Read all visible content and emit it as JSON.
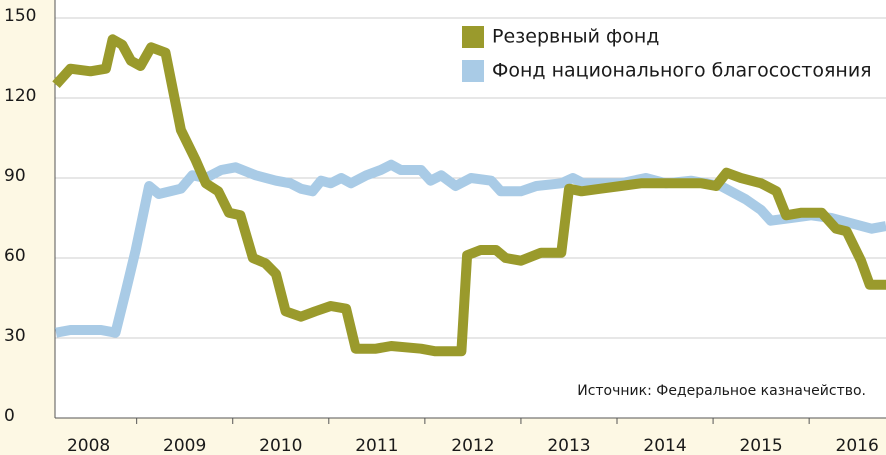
{
  "chart_data": {
    "type": "line",
    "annotation": "Источник: Федеральное казначейство.",
    "xlim": [
      2008.15,
      2016.8
    ],
    "xticks": [
      2008,
      2009,
      2010,
      2011,
      2012,
      2013,
      2014,
      2015,
      2016
    ],
    "ylim": [
      0,
      150
    ],
    "yticks": [
      0,
      30,
      60,
      90,
      120,
      150
    ],
    "grid": true,
    "legend": "upper right",
    "series": [
      {
        "name": "Резервный фонд",
        "color": "#9a9a2c",
        "x": [
          2008.16,
          2008.31,
          2008.52,
          2008.68,
          2008.75,
          2008.85,
          2008.94,
          2009.04,
          2009.15,
          2009.3,
          2009.46,
          2009.61,
          2009.72,
          2009.85,
          2009.96,
          2010.08,
          2010.21,
          2010.34,
          2010.45,
          2010.55,
          2010.71,
          2010.86,
          2011.02,
          2011.18,
          2011.28,
          2011.49,
          2011.65,
          2011.96,
          2012.11,
          2012.38,
          2012.44,
          2012.58,
          2012.74,
          2012.84,
          2013.0,
          2013.21,
          2013.42,
          2013.5,
          2013.63,
          2013.83,
          2014.04,
          2014.25,
          2014.46,
          2014.88,
          2015.03,
          2015.14,
          2015.29,
          2015.5,
          2015.66,
          2015.76,
          2015.92,
          2016.13,
          2016.28,
          2016.39,
          2016.54,
          2016.63,
          2016.8
        ],
        "values": [
          125,
          131,
          130,
          131,
          142,
          140,
          134,
          132,
          139,
          137,
          108,
          97,
          88,
          85,
          77,
          76,
          60,
          58,
          54,
          40,
          38,
          40,
          42,
          41,
          26,
          26,
          27,
          26,
          25,
          25,
          61,
          63,
          63,
          60,
          59,
          62,
          62,
          86,
          85,
          86,
          87,
          88,
          88,
          88,
          87,
          92,
          90,
          88,
          85,
          76,
          77,
          77,
          71,
          70,
          59,
          50,
          50
        ]
      },
      {
        "name": "Фонд национального благосостояния",
        "color": "#a9cbe6",
        "x": [
          2008.16,
          2008.31,
          2008.63,
          2008.78,
          2008.89,
          2008.99,
          2009.13,
          2009.23,
          2009.35,
          2009.46,
          2009.58,
          2009.72,
          2009.88,
          2010.03,
          2010.24,
          2010.45,
          2010.6,
          2010.71,
          2010.83,
          2010.92,
          2011.02,
          2011.13,
          2011.23,
          2011.39,
          2011.54,
          2011.65,
          2011.75,
          2011.96,
          2012.06,
          2012.17,
          2012.32,
          2012.48,
          2012.69,
          2012.79,
          2013.0,
          2013.16,
          2013.42,
          2013.54,
          2013.65,
          2014.04,
          2014.3,
          2014.51,
          2014.77,
          2015.08,
          2015.34,
          2015.5,
          2015.6,
          2015.81,
          2016.02,
          2016.23,
          2016.44,
          2016.65,
          2016.8
        ],
        "values": [
          32,
          33,
          33,
          32,
          48,
          63,
          87,
          84,
          85,
          86,
          91,
          90,
          93,
          94,
          91,
          89,
          88,
          86,
          85,
          89,
          88,
          90,
          88,
          91,
          93,
          95,
          93,
          93,
          89,
          91,
          87,
          90,
          89,
          85,
          85,
          87,
          88,
          90,
          88,
          88,
          90,
          88,
          89,
          87,
          82,
          78,
          74,
          75,
          76,
          75,
          73,
          71,
          72
        ]
      }
    ]
  }
}
